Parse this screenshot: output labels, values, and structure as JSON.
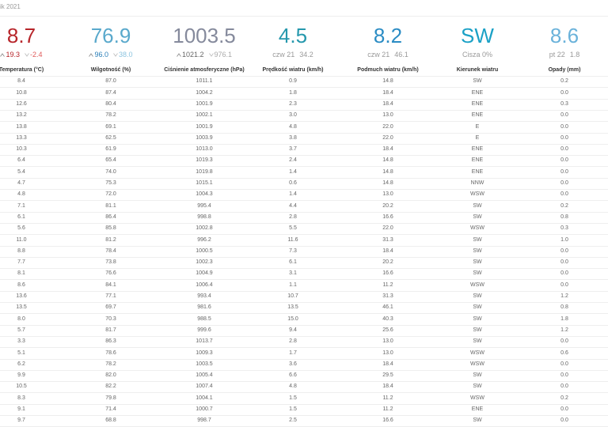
{
  "header": {
    "title": "ik 2021"
  },
  "summary": [
    {
      "value": "8.7",
      "color": "#b7252a",
      "sub": [
        "19.3",
        "-2.4"
      ]
    },
    {
      "value": "76.9",
      "color": "#5aa9cc",
      "sub": [
        "96.0",
        "38.0"
      ]
    },
    {
      "value": "1003.5",
      "color": "#858a9c",
      "sub": [
        "1021.2",
        "976.1"
      ]
    },
    {
      "value": "4.5",
      "color": "#2698ad",
      "sub": [
        "czw 21",
        "34.2"
      ]
    },
    {
      "value": "8.2",
      "color": "#2b8cc4",
      "sub": [
        "czw 21",
        "46.1"
      ]
    },
    {
      "value": "SW",
      "color": "#1ba1c6",
      "sub": [
        "Cisza 0%"
      ]
    },
    {
      "value": "8.6",
      "color": "#6ab2da",
      "sub": [
        "pt 22",
        "1.8"
      ]
    }
  ],
  "table": {
    "headers": [
      "Temperatura (°C)",
      "Wilgotność (%)",
      "Ciśnienie atmosferyczne (hPa)",
      "Prędkość wiatru (km/h)",
      "Podmuch wiatru (km/h)",
      "Kierunek wiatru",
      "Opady (mm)"
    ],
    "rows": [
      [
        "8.4",
        "87.0",
        "1011.1",
        "0.9",
        "14.8",
        "SW",
        "0.2"
      ],
      [
        "10.8",
        "87.4",
        "1004.2",
        "1.8",
        "18.4",
        "ENE",
        "0.0"
      ],
      [
        "12.6",
        "80.4",
        "1001.9",
        "2.3",
        "18.4",
        "ENE",
        "0.3"
      ],
      [
        "13.2",
        "78.2",
        "1002.1",
        "3.0",
        "13.0",
        "ENE",
        "0.0"
      ],
      [
        "13.8",
        "69.1",
        "1001.9",
        "4.8",
        "22.0",
        "E",
        "0.0"
      ],
      [
        "13.3",
        "62.5",
        "1003.9",
        "3.8",
        "22.0",
        "E",
        "0.0"
      ],
      [
        "10.3",
        "61.9",
        "1013.0",
        "3.7",
        "18.4",
        "ENE",
        "0.0"
      ],
      [
        "6.4",
        "65.4",
        "1019.3",
        "2.4",
        "14.8",
        "ENE",
        "0.0"
      ],
      [
        "5.4",
        "74.0",
        "1019.8",
        "1.4",
        "14.8",
        "ENE",
        "0.0"
      ],
      [
        "4.7",
        "75.3",
        "1015.1",
        "0.6",
        "14.8",
        "NNW",
        "0.0"
      ],
      [
        "4.8",
        "72.0",
        "1004.3",
        "1.4",
        "13.0",
        "WSW",
        "0.0"
      ],
      [
        "7.1",
        "81.1",
        "995.4",
        "4.4",
        "20.2",
        "SW",
        "0.2"
      ],
      [
        "6.1",
        "86.4",
        "998.8",
        "2.8",
        "16.6",
        "SW",
        "0.8"
      ],
      [
        "5.6",
        "85.8",
        "1002.8",
        "5.5",
        "22.0",
        "WSW",
        "0.3"
      ],
      [
        "11.0",
        "81.2",
        "996.2",
        "11.6",
        "31.3",
        "SW",
        "1.0"
      ],
      [
        "8.8",
        "78.4",
        "1000.5",
        "7.3",
        "18.4",
        "SW",
        "0.0"
      ],
      [
        "7.7",
        "73.8",
        "1002.3",
        "6.1",
        "20.2",
        "SW",
        "0.0"
      ],
      [
        "8.1",
        "76.6",
        "1004.9",
        "3.1",
        "16.6",
        "SW",
        "0.0"
      ],
      [
        "8.6",
        "84.1",
        "1006.4",
        "1.1",
        "11.2",
        "WSW",
        "0.0"
      ],
      [
        "13.6",
        "77.1",
        "993.4",
        "10.7",
        "31.3",
        "SW",
        "1.2"
      ],
      [
        "13.5",
        "69.7",
        "981.6",
        "13.5",
        "46.1",
        "SW",
        "0.8"
      ],
      [
        "8.0",
        "70.3",
        "988.5",
        "15.0",
        "40.3",
        "SW",
        "1.8"
      ],
      [
        "5.7",
        "81.7",
        "999.6",
        "9.4",
        "25.6",
        "SW",
        "1.2"
      ],
      [
        "3.3",
        "86.3",
        "1013.7",
        "2.8",
        "13.0",
        "SW",
        "0.0"
      ],
      [
        "5.1",
        "78.6",
        "1009.3",
        "1.7",
        "13.0",
        "WSW",
        "0.6"
      ],
      [
        "6.2",
        "78.2",
        "1003.5",
        "3.6",
        "18.4",
        "WSW",
        "0.0"
      ],
      [
        "9.9",
        "82.0",
        "1005.4",
        "6.6",
        "29.5",
        "SW",
        "0.0"
      ],
      [
        "10.5",
        "82.2",
        "1007.4",
        "4.8",
        "18.4",
        "SW",
        "0.0"
      ],
      [
        "8.3",
        "79.8",
        "1004.1",
        "1.5",
        "11.2",
        "WSW",
        "0.2"
      ],
      [
        "9.1",
        "71.4",
        "1000.7",
        "1.5",
        "11.2",
        "ENE",
        "0.0"
      ],
      [
        "9.7",
        "68.8",
        "998.7",
        "2.5",
        "16.6",
        "SW",
        "0.0"
      ]
    ]
  }
}
